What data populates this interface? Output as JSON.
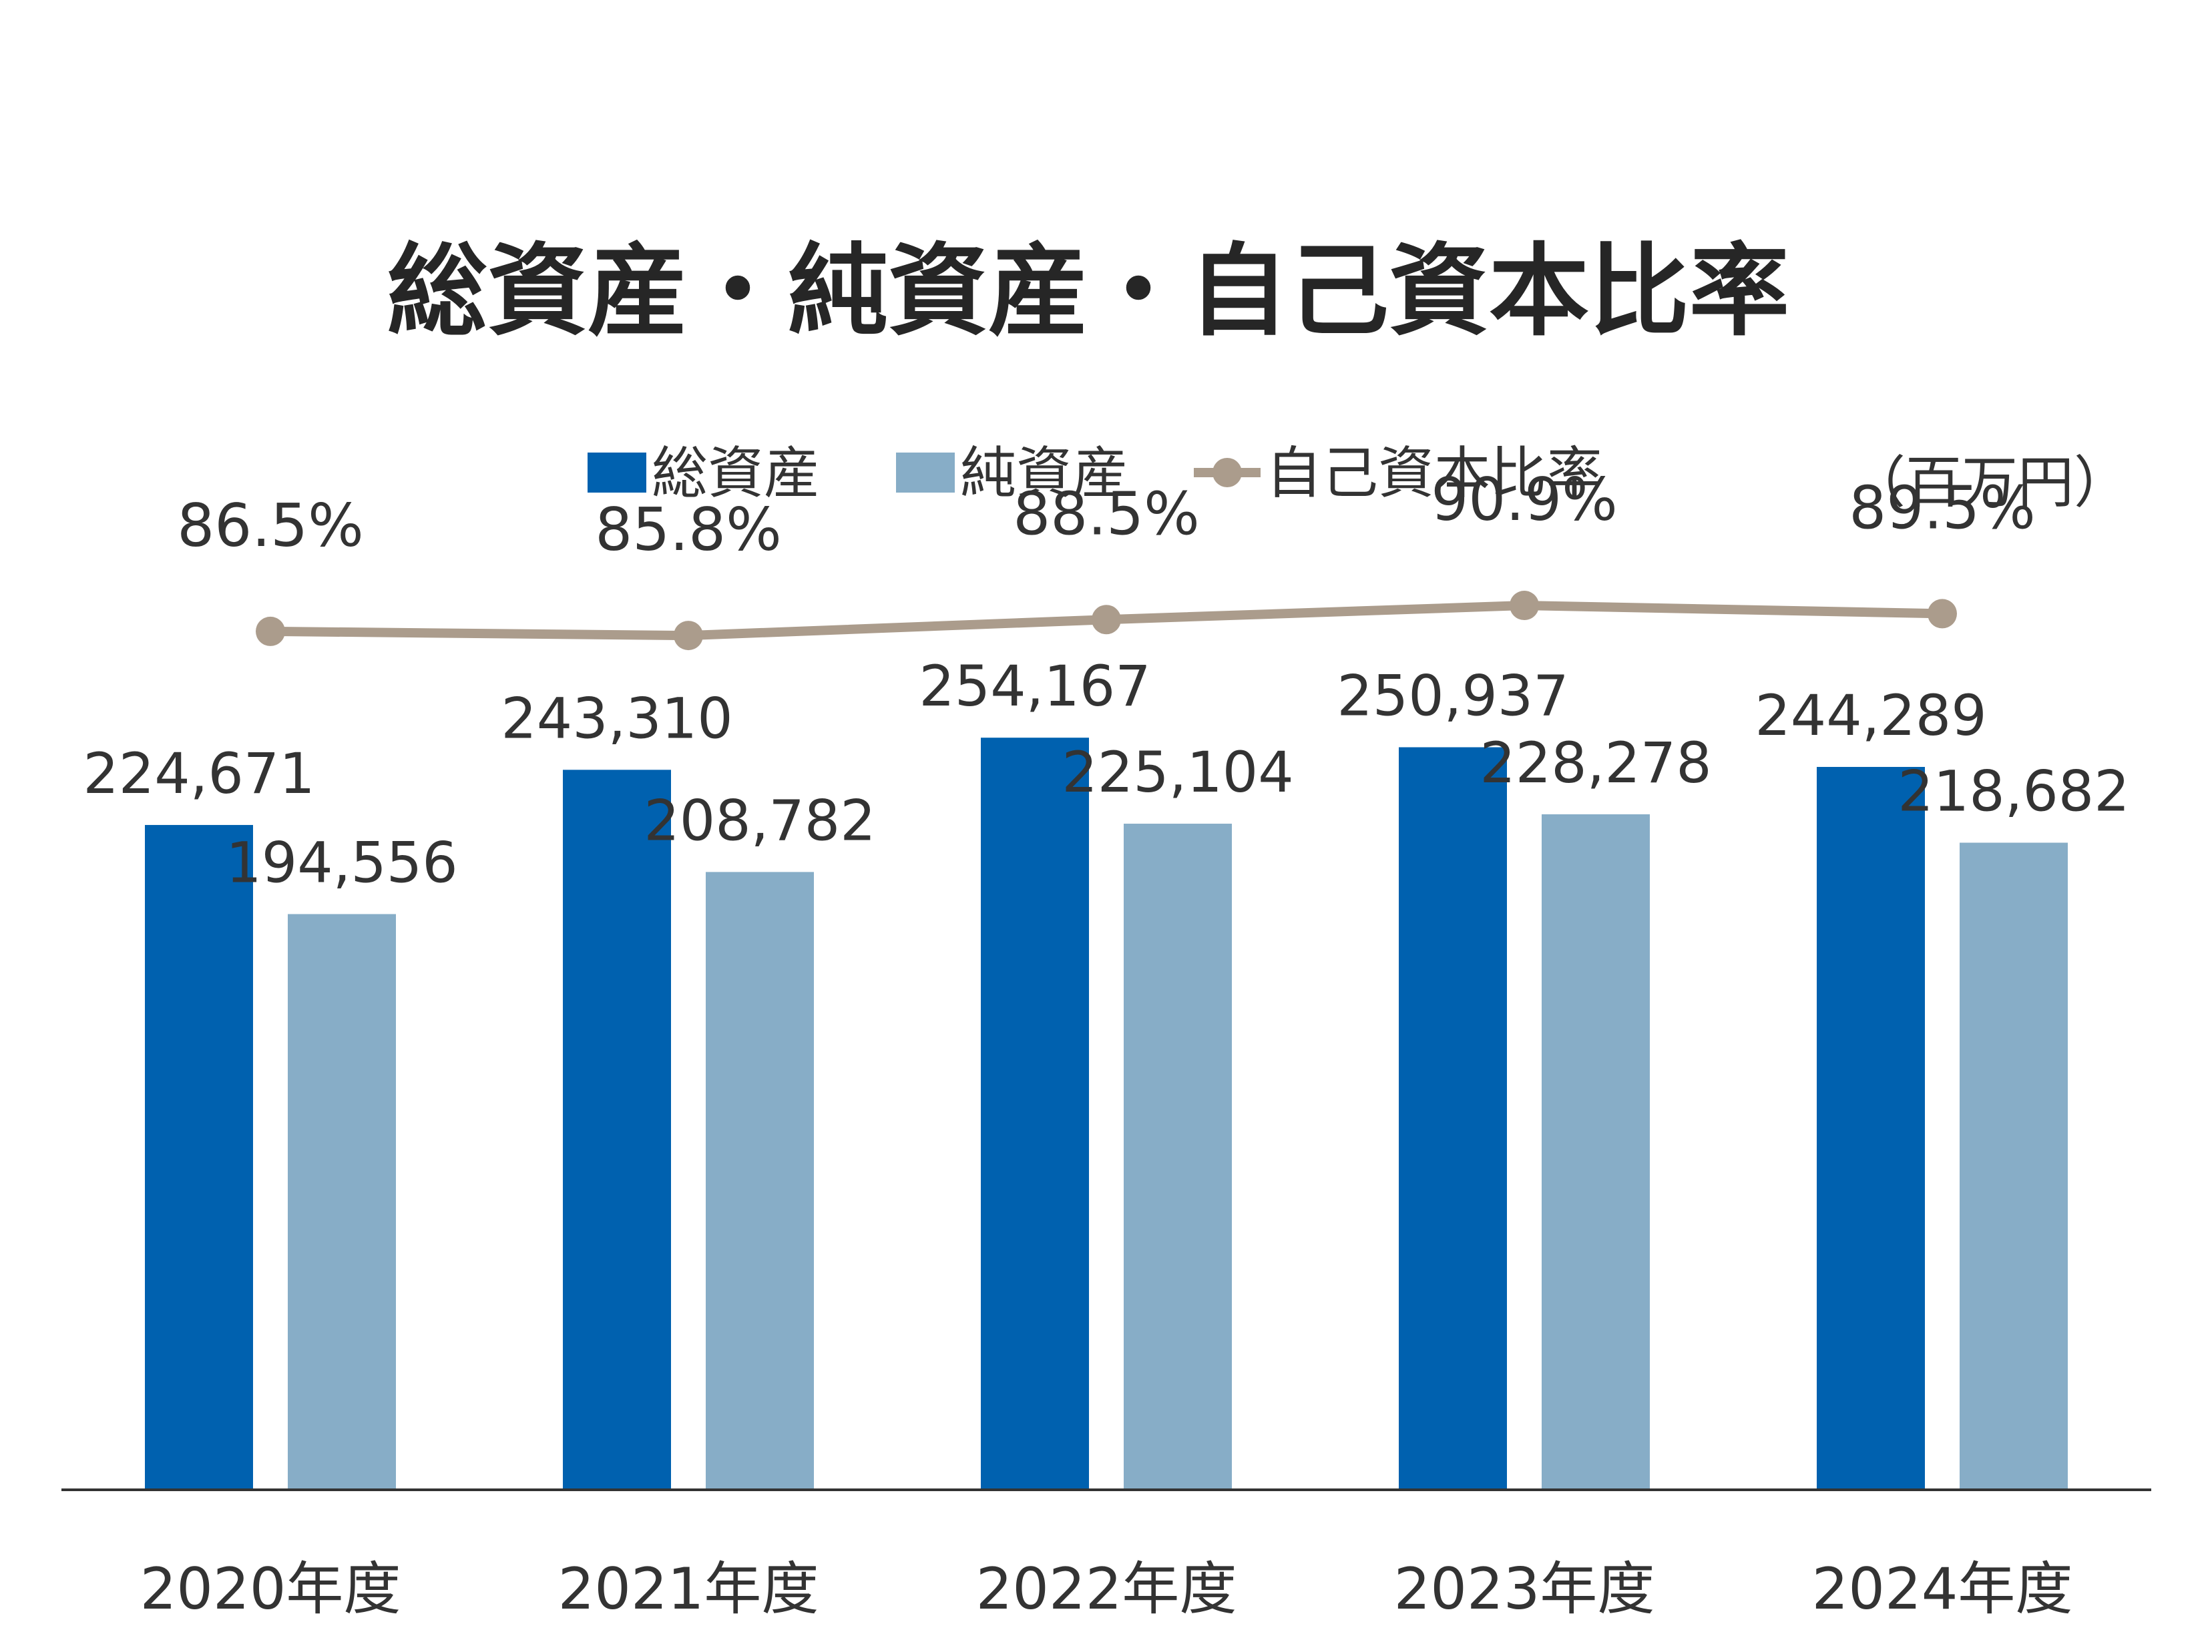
{
  "chart_data": {
    "type": "bar",
    "title": "総資産・純資産・自己資本比率",
    "unit": "（百万円）",
    "categories": [
      "2020年度",
      "2021年度",
      "2022年度",
      "2023年度",
      "2024年度"
    ],
    "series": [
      {
        "name": "総資産",
        "kind": "bar",
        "color": "#0061AF",
        "values": [
          224671,
          243310,
          254167,
          250937,
          244289
        ],
        "labels": [
          "224,671",
          "243,310",
          "254,167",
          "250,937",
          "244,289"
        ]
      },
      {
        "name": "純資産",
        "kind": "bar",
        "color": "#87ADC7",
        "values": [
          194556,
          208782,
          225104,
          228278,
          218682
        ],
        "labels": [
          "194,556",
          "208,782",
          "225,104",
          "228,278",
          "218,682"
        ]
      },
      {
        "name": "自己資本比率",
        "kind": "line",
        "color": "#AB9C8C",
        "values": [
          86.5,
          85.8,
          88.5,
          90.9,
          89.5
        ],
        "labels": [
          "86.5%",
          "85.8%",
          "88.5%",
          "90.9%",
          "89.5%"
        ]
      }
    ],
    "y_axis": {
      "min": 0,
      "max": 270000,
      "visible": false
    },
    "y2_axis": {
      "min": 0,
      "max": 100,
      "visible": false
    },
    "grid": false,
    "legend": "top-center"
  }
}
